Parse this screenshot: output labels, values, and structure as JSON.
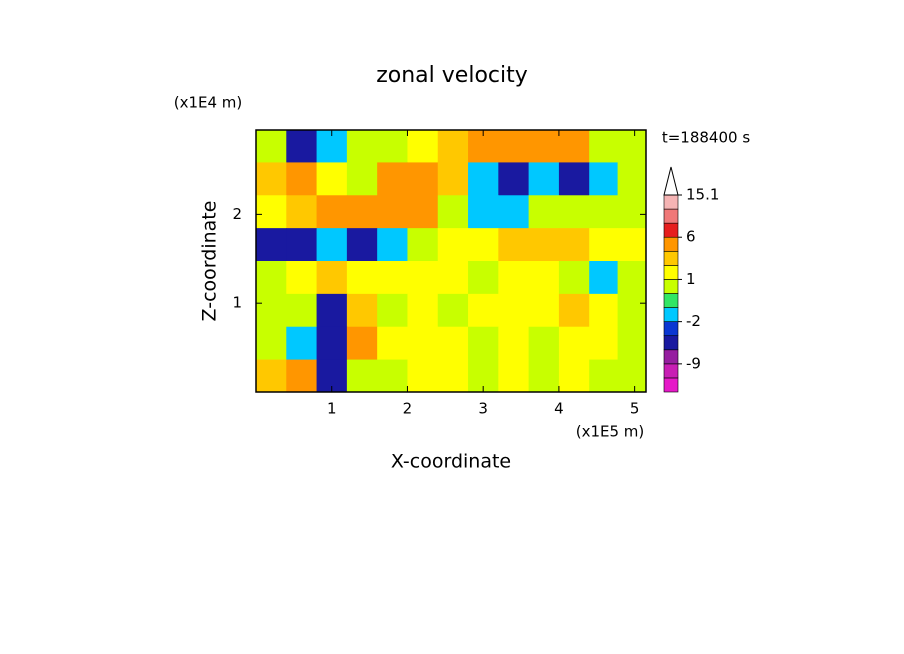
{
  "chart_data": {
    "type": "contour",
    "title": "zonal velocity",
    "x_label": "X-coordinate",
    "y_label": "Z-coordinate",
    "x_unit": "(x1E5 m)",
    "y_unit": "(x1E4 m)",
    "time_label": "t=188400 s",
    "xlim": [
      0,
      5.15
    ],
    "ylim": [
      0,
      2.95
    ],
    "xticks": [
      1,
      2,
      3,
      4,
      5
    ],
    "yticks": [
      1,
      2
    ],
    "x": [
      0.2,
      0.6,
      1.0,
      1.4,
      1.8,
      2.2,
      2.6,
      3.0,
      3.4,
      3.8,
      4.2,
      4.6,
      4.95
    ],
    "z": [
      2.77,
      2.4,
      2.03,
      1.66,
      1.29,
      0.92,
      0.55,
      0.18
    ],
    "values": [
      [
        0.5,
        -4,
        -2,
        0.5,
        0.5,
        1.5,
        2.5,
        4,
        5,
        4,
        4,
        0.5,
        0.5
      ],
      [
        2.5,
        3,
        1.5,
        0.5,
        4,
        4,
        2.5,
        -1.5,
        -4,
        -1.5,
        -4,
        -1.5,
        0.5
      ],
      [
        1.5,
        2.5,
        4,
        4,
        5,
        3,
        0.5,
        -1.5,
        -1.5,
        0.5,
        0.5,
        0.5,
        0.5
      ],
      [
        -4,
        -4,
        -1.5,
        -4,
        -1.5,
        0.5,
        1.5,
        1.5,
        2.5,
        2.5,
        2.5,
        1.5,
        1.5
      ],
      [
        0.5,
        1.5,
        2.5,
        1.5,
        1.5,
        1.5,
        1.5,
        0.5,
        1.5,
        1.5,
        0.5,
        -1.5,
        0.5
      ],
      [
        0.5,
        0.5,
        -4,
        2.5,
        0.5,
        1.5,
        0.5,
        1.5,
        1.5,
        1.5,
        2.5,
        1.5,
        0.5
      ],
      [
        0.5,
        -1.5,
        -4,
        4,
        1.5,
        1.5,
        1.5,
        0.5,
        1.5,
        0.5,
        1.5,
        1.5,
        0.5
      ],
      [
        2.5,
        4,
        -4,
        0.5,
        0.5,
        1.5,
        1.5,
        0.5,
        1.5,
        0.5,
        1.5,
        0.5,
        0.5
      ]
    ],
    "colorbar": {
      "levels": [
        -15,
        -12,
        -9,
        -6,
        -3,
        -2,
        -1,
        0,
        1,
        2,
        3,
        6,
        9,
        12,
        15.1
      ],
      "colors": [
        "#e619c8",
        "#c81eb4",
        "#961ea0",
        "#1919a0",
        "#0a37d2",
        "#00c8ff",
        "#32e664",
        "#c8ff00",
        "#ffff00",
        "#ffc800",
        "#ff9600",
        "#e61e1e",
        "#f07878",
        "#f5b4b4"
      ],
      "over_color": "#ffffff",
      "ticks": [
        15.1,
        6,
        1,
        -2,
        -9
      ]
    }
  }
}
